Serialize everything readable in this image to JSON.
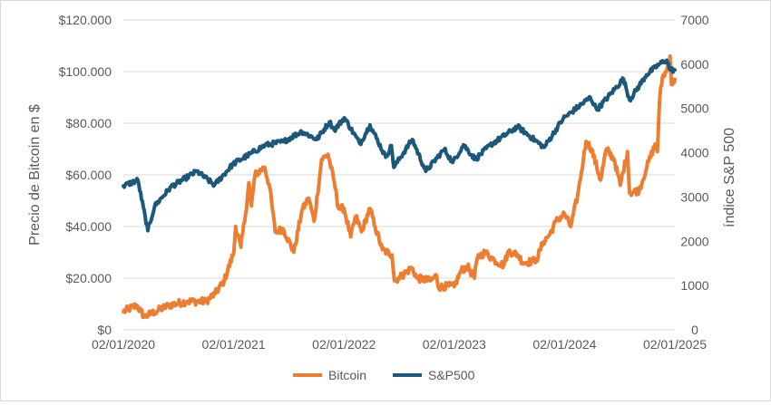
{
  "chart_data": {
    "type": "line",
    "title": "",
    "xlabel": "",
    "ylabel_left": "Precio de Bitcoin en $",
    "ylabel_right": "índice S&P 500",
    "x_ticks": [
      "02/01/2020",
      "02/01/2021",
      "02/01/2022",
      "02/01/2023",
      "02/01/2024",
      "02/01/2025"
    ],
    "x_range": [
      "2020-01-02",
      "2025-01-02"
    ],
    "y_left_ticks": [
      "$0",
      "$20.000",
      "$40.000",
      "$60.000",
      "$80.000",
      "$100.000",
      "$120.000"
    ],
    "y_left_range": [
      0,
      120000
    ],
    "y_right_ticks": [
      "0",
      "1000",
      "2000",
      "3000",
      "4000",
      "5000",
      "6000",
      "7000"
    ],
    "y_right_range": [
      0,
      7000
    ],
    "grid": true,
    "legend_position": "bottom",
    "series": [
      {
        "name": "Bitcoin",
        "axis": "left",
        "color": "#ed7d31",
        "points": [
          [
            "2020-01-02",
            7000
          ],
          [
            "2020-02-15",
            9500
          ],
          [
            "2020-03-12",
            5000
          ],
          [
            "2020-04-15",
            7000
          ],
          [
            "2020-06-01",
            9500
          ],
          [
            "2020-08-01",
            11000
          ],
          [
            "2020-10-01",
            11000
          ],
          [
            "2020-11-01",
            14000
          ],
          [
            "2020-12-01",
            19000
          ],
          [
            "2021-01-02",
            30000
          ],
          [
            "2021-01-08",
            40000
          ],
          [
            "2021-01-25",
            32000
          ],
          [
            "2021-02-10",
            45000
          ],
          [
            "2021-02-21",
            57000
          ],
          [
            "2021-03-01",
            48000
          ],
          [
            "2021-03-13",
            60000
          ],
          [
            "2021-04-14",
            63000
          ],
          [
            "2021-05-01",
            55000
          ],
          [
            "2021-05-19",
            38000
          ],
          [
            "2021-06-15",
            39000
          ],
          [
            "2021-07-20",
            30000
          ],
          [
            "2021-08-15",
            46000
          ],
          [
            "2021-09-07",
            51000
          ],
          [
            "2021-09-25",
            42000
          ],
          [
            "2021-10-20",
            66000
          ],
          [
            "2021-11-10",
            68000
          ],
          [
            "2021-12-01",
            57000
          ],
          [
            "2021-12-15",
            47000
          ],
          [
            "2022-01-02",
            47000
          ],
          [
            "2022-01-24",
            36000
          ],
          [
            "2022-02-10",
            44000
          ],
          [
            "2022-03-01",
            38000
          ],
          [
            "2022-03-29",
            47000
          ],
          [
            "2022-04-15",
            40000
          ],
          [
            "2022-05-09",
            31000
          ],
          [
            "2022-06-10",
            29000
          ],
          [
            "2022-06-18",
            19000
          ],
          [
            "2022-07-01",
            20000
          ],
          [
            "2022-08-15",
            24000
          ],
          [
            "2022-09-01",
            20000
          ],
          [
            "2022-10-15",
            19000
          ],
          [
            "2022-11-05",
            21000
          ],
          [
            "2022-11-10",
            16500
          ],
          [
            "2022-12-15",
            17000
          ],
          [
            "2023-01-02",
            16700
          ],
          [
            "2023-01-25",
            23000
          ],
          [
            "2023-02-15",
            24500
          ],
          [
            "2023-03-10",
            20000
          ],
          [
            "2023-03-20",
            28000
          ],
          [
            "2023-04-14",
            30000
          ],
          [
            "2023-05-15",
            27000
          ],
          [
            "2023-06-15",
            25000
          ],
          [
            "2023-07-01",
            30500
          ],
          [
            "2023-08-01",
            29000
          ],
          [
            "2023-08-18",
            26000
          ],
          [
            "2023-09-15",
            26500
          ],
          [
            "2023-10-01",
            27000
          ],
          [
            "2023-10-24",
            34000
          ],
          [
            "2023-11-15",
            37000
          ],
          [
            "2023-12-05",
            42000
          ],
          [
            "2024-01-02",
            45000
          ],
          [
            "2024-01-23",
            40000
          ],
          [
            "2024-02-15",
            52000
          ],
          [
            "2024-03-05",
            66000
          ],
          [
            "2024-03-14",
            73000
          ],
          [
            "2024-04-01",
            70000
          ],
          [
            "2024-05-01",
            58000
          ],
          [
            "2024-05-20",
            70000
          ],
          [
            "2024-06-15",
            66000
          ],
          [
            "2024-07-05",
            56000
          ],
          [
            "2024-07-29",
            69000
          ],
          [
            "2024-08-05",
            53000
          ],
          [
            "2024-09-06",
            54000
          ],
          [
            "2024-10-01",
            63000
          ],
          [
            "2024-10-29",
            72000
          ],
          [
            "2024-11-05",
            69000
          ],
          [
            "2024-11-13",
            90000
          ],
          [
            "2024-11-22",
            98000
          ],
          [
            "2024-12-05",
            100000
          ],
          [
            "2024-12-17",
            106000
          ],
          [
            "2024-12-22",
            95000
          ],
          [
            "2025-01-02",
            97000
          ]
        ]
      },
      {
        "name": "S&P500",
        "axis": "right",
        "color": "#1b587c",
        "points": [
          [
            "2020-01-02",
            3250
          ],
          [
            "2020-02-19",
            3380
          ],
          [
            "2020-03-23",
            2240
          ],
          [
            "2020-04-15",
            2800
          ],
          [
            "2020-06-08",
            3230
          ],
          [
            "2020-09-02",
            3580
          ],
          [
            "2020-10-30",
            3270
          ],
          [
            "2020-12-31",
            3750
          ],
          [
            "2021-02-15",
            3930
          ],
          [
            "2021-04-15",
            4170
          ],
          [
            "2021-06-15",
            4250
          ],
          [
            "2021-08-15",
            4480
          ],
          [
            "2021-10-04",
            4300
          ],
          [
            "2021-11-15",
            4700
          ],
          [
            "2021-12-01",
            4510
          ],
          [
            "2022-01-03",
            4790
          ],
          [
            "2022-02-24",
            4200
          ],
          [
            "2022-03-29",
            4630
          ],
          [
            "2022-05-20",
            3900
          ],
          [
            "2022-06-08",
            4160
          ],
          [
            "2022-06-16",
            3670
          ],
          [
            "2022-08-16",
            4300
          ],
          [
            "2022-09-30",
            3580
          ],
          [
            "2022-11-30",
            4080
          ],
          [
            "2022-12-28",
            3780
          ],
          [
            "2023-02-02",
            4180
          ],
          [
            "2023-03-13",
            3850
          ],
          [
            "2023-05-01",
            4170
          ],
          [
            "2023-07-31",
            4590
          ],
          [
            "2023-10-27",
            4120
          ],
          [
            "2023-12-29",
            4770
          ],
          [
            "2024-03-28",
            5250
          ],
          [
            "2024-04-19",
            4970
          ],
          [
            "2024-07-16",
            5670
          ],
          [
            "2024-08-05",
            5190
          ],
          [
            "2024-09-30",
            5760
          ],
          [
            "2024-11-11",
            6000
          ],
          [
            "2024-12-06",
            6090
          ],
          [
            "2024-12-18",
            5870
          ],
          [
            "2025-01-02",
            5870
          ]
        ]
      }
    ]
  }
}
